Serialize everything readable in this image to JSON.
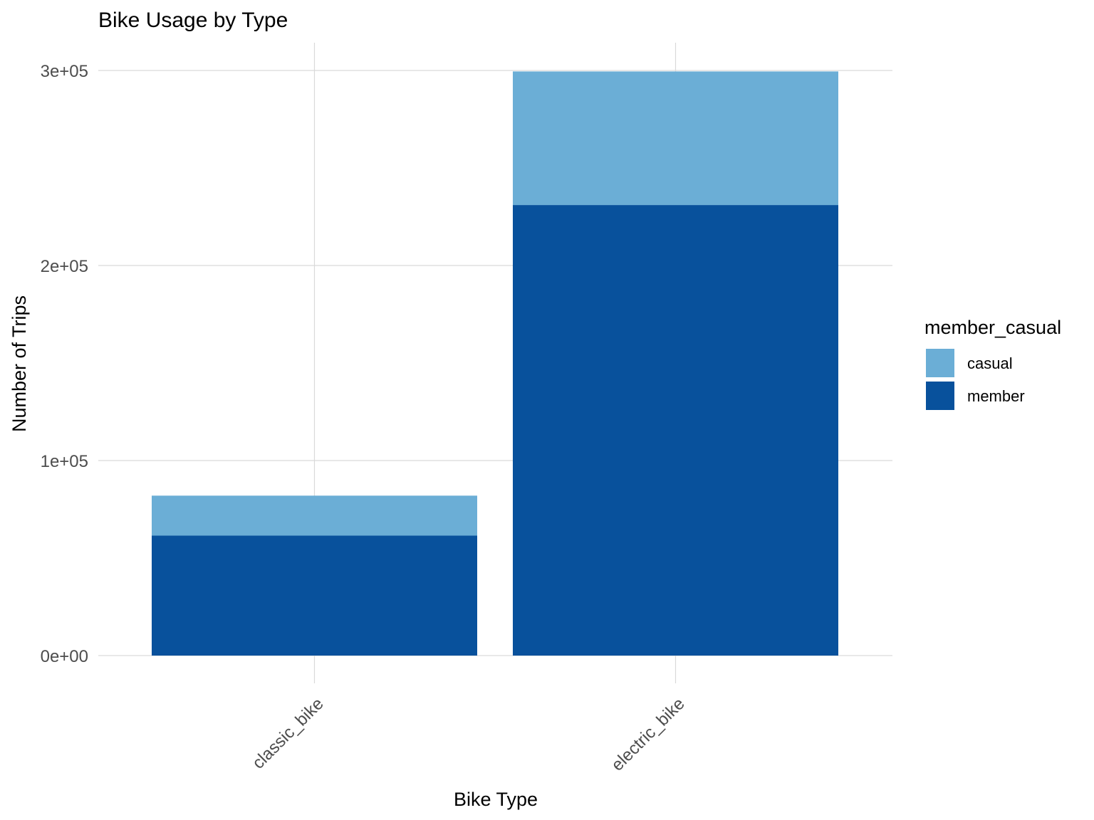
{
  "chart_data": {
    "type": "bar",
    "stacked": true,
    "title": "Bike Usage by Type",
    "xlabel": "Bike Type",
    "ylabel": "Number of Trips",
    "categories": [
      "classic_bike",
      "electric_bike"
    ],
    "series": [
      {
        "name": "member",
        "values": [
          61500,
          231000
        ],
        "color": "#08519c"
      },
      {
        "name": "casual",
        "values": [
          20500,
          68500
        ],
        "color": "#6baed6"
      }
    ],
    "ylim": [
      0,
      300000
    ],
    "yticks": [
      {
        "value": 0,
        "label": "0e+00"
      },
      {
        "value": 100000,
        "label": "1e+05"
      },
      {
        "value": 200000,
        "label": "2e+05"
      },
      {
        "value": 300000,
        "label": "3e+05"
      }
    ],
    "grid": true,
    "legend": {
      "title": "member_casual",
      "position": "right",
      "entries": [
        {
          "label": "casual",
          "color": "#6baed6"
        },
        {
          "label": "member",
          "color": "#08519c"
        }
      ]
    }
  }
}
